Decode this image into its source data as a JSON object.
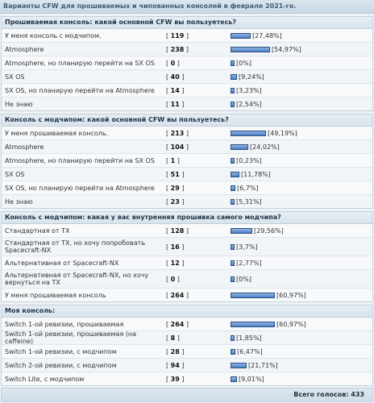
{
  "page_title": "Варианты CFW для прошиваемых и чипованных консолей в феврале 2021-го.",
  "bar_color": "#5a8bd0",
  "polls": [
    {
      "question": "Прошиваемая консоль: какой основной CFW вы пользуетесь?",
      "options": [
        {
          "label": "У меня консоль с модчипом.",
          "count": "119",
          "percent": "27,48%",
          "fraction": 0.2748
        },
        {
          "label": "Atmosphere",
          "count": "238",
          "percent": "54,97%",
          "fraction": 0.5497
        },
        {
          "label": "Atmosphere, но планирую перейти на SX OS",
          "count": "0",
          "percent": "0%",
          "fraction": 0
        },
        {
          "label": "SX OS",
          "count": "40",
          "percent": "9,24%",
          "fraction": 0.0924
        },
        {
          "label": "SX OS, но планирую перейти на Atmosphere",
          "count": "14",
          "percent": "3,23%",
          "fraction": 0.0323
        },
        {
          "label": "Не знаю",
          "count": "11",
          "percent": "2,54%",
          "fraction": 0.0254
        }
      ]
    },
    {
      "question": "Консоль с модчипом: какой основной CFW вы пользуетесь?",
      "options": [
        {
          "label": "У меня прошиваемая консоль.",
          "count": "213",
          "percent": "49,19%",
          "fraction": 0.4919
        },
        {
          "label": "Atmosphere",
          "count": "104",
          "percent": "24,02%",
          "fraction": 0.2402
        },
        {
          "label": "Atmosphere, но планирую перейти на SX OS",
          "count": "1",
          "percent": "0,23%",
          "fraction": 0.0023
        },
        {
          "label": "SX OS",
          "count": "51",
          "percent": "11,78%",
          "fraction": 0.1178
        },
        {
          "label": "SX OS, но планирую перейти на Atmosphere",
          "count": "29",
          "percent": "6,7%",
          "fraction": 0.067
        },
        {
          "label": "Не знаю",
          "count": "23",
          "percent": "5,31%",
          "fraction": 0.0531
        }
      ]
    },
    {
      "question": "Консоль с модчипом: какая у вас внутренняя прошивка самого модчипа?",
      "options": [
        {
          "label": "Стандартная от TX",
          "count": "128",
          "percent": "29,56%",
          "fraction": 0.2956
        },
        {
          "label": "Стандартная от TX, но хочу попробовать Spacecraft-NX",
          "count": "16",
          "percent": "3,7%",
          "fraction": 0.037
        },
        {
          "label": "Альтернативная от Spacecraft-NX",
          "count": "12",
          "percent": "2,77%",
          "fraction": 0.0277
        },
        {
          "label": "Альтернативная от Spacecraft-NX, но хочу вернуться на TX",
          "count": "0",
          "percent": "0%",
          "fraction": 0
        },
        {
          "label": "У меня прошиваемая консоль",
          "count": "264",
          "percent": "60,97%",
          "fraction": 0.6097
        }
      ]
    },
    {
      "question": "Моя консоль:",
      "options": [
        {
          "label": "Switch 1-ой ревизии, прошиваемая",
          "count": "264",
          "percent": "60,97%",
          "fraction": 0.6097
        },
        {
          "label": "Switch 1-ой ревизии, прошиваемая (на caffeine)",
          "count": "8",
          "percent": "1,85%",
          "fraction": 0.0185
        },
        {
          "label": "Switch 1-ой ревизии, с модчипом",
          "count": "28",
          "percent": "6,47%",
          "fraction": 0.0647
        },
        {
          "label": "Switch 2-ой ревизии, с модчипом",
          "count": "94",
          "percent": "21,71%",
          "fraction": 0.2171
        },
        {
          "label": "Switch Lite, с модчипом",
          "count": "39",
          "percent": "9,01%",
          "fraction": 0.0901
        }
      ]
    }
  ],
  "total_label": "Всего голосов:",
  "total_votes": "433"
}
